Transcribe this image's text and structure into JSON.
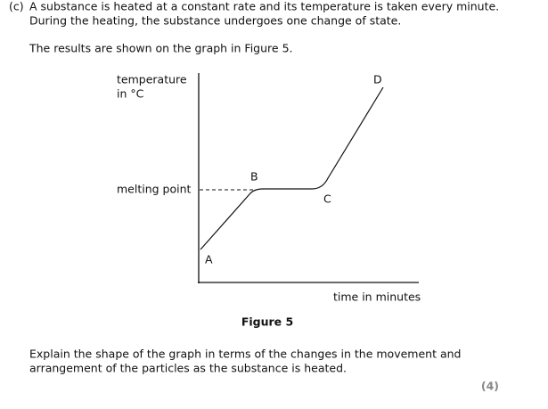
{
  "question": {
    "label": "(c)",
    "lines": [
      "A substance is heated at a constant rate and its temperature is taken every minute.",
      "During the heating, the substance undergoes one change of state."
    ],
    "intro": "The results are shown on the graph in Figure 5."
  },
  "figure": {
    "y_axis_label": [
      "temperature",
      "in °C"
    ],
    "x_axis_label": "time in minutes",
    "reference_label": "melting point",
    "points": [
      "A",
      "B",
      "C",
      "D"
    ],
    "caption": "Figure 5"
  },
  "task": {
    "lines": [
      "Explain the shape of the graph in terms of the changes in the movement and",
      "arrangement of the particles as the substance is heated."
    ],
    "marks": "(4)"
  }
}
